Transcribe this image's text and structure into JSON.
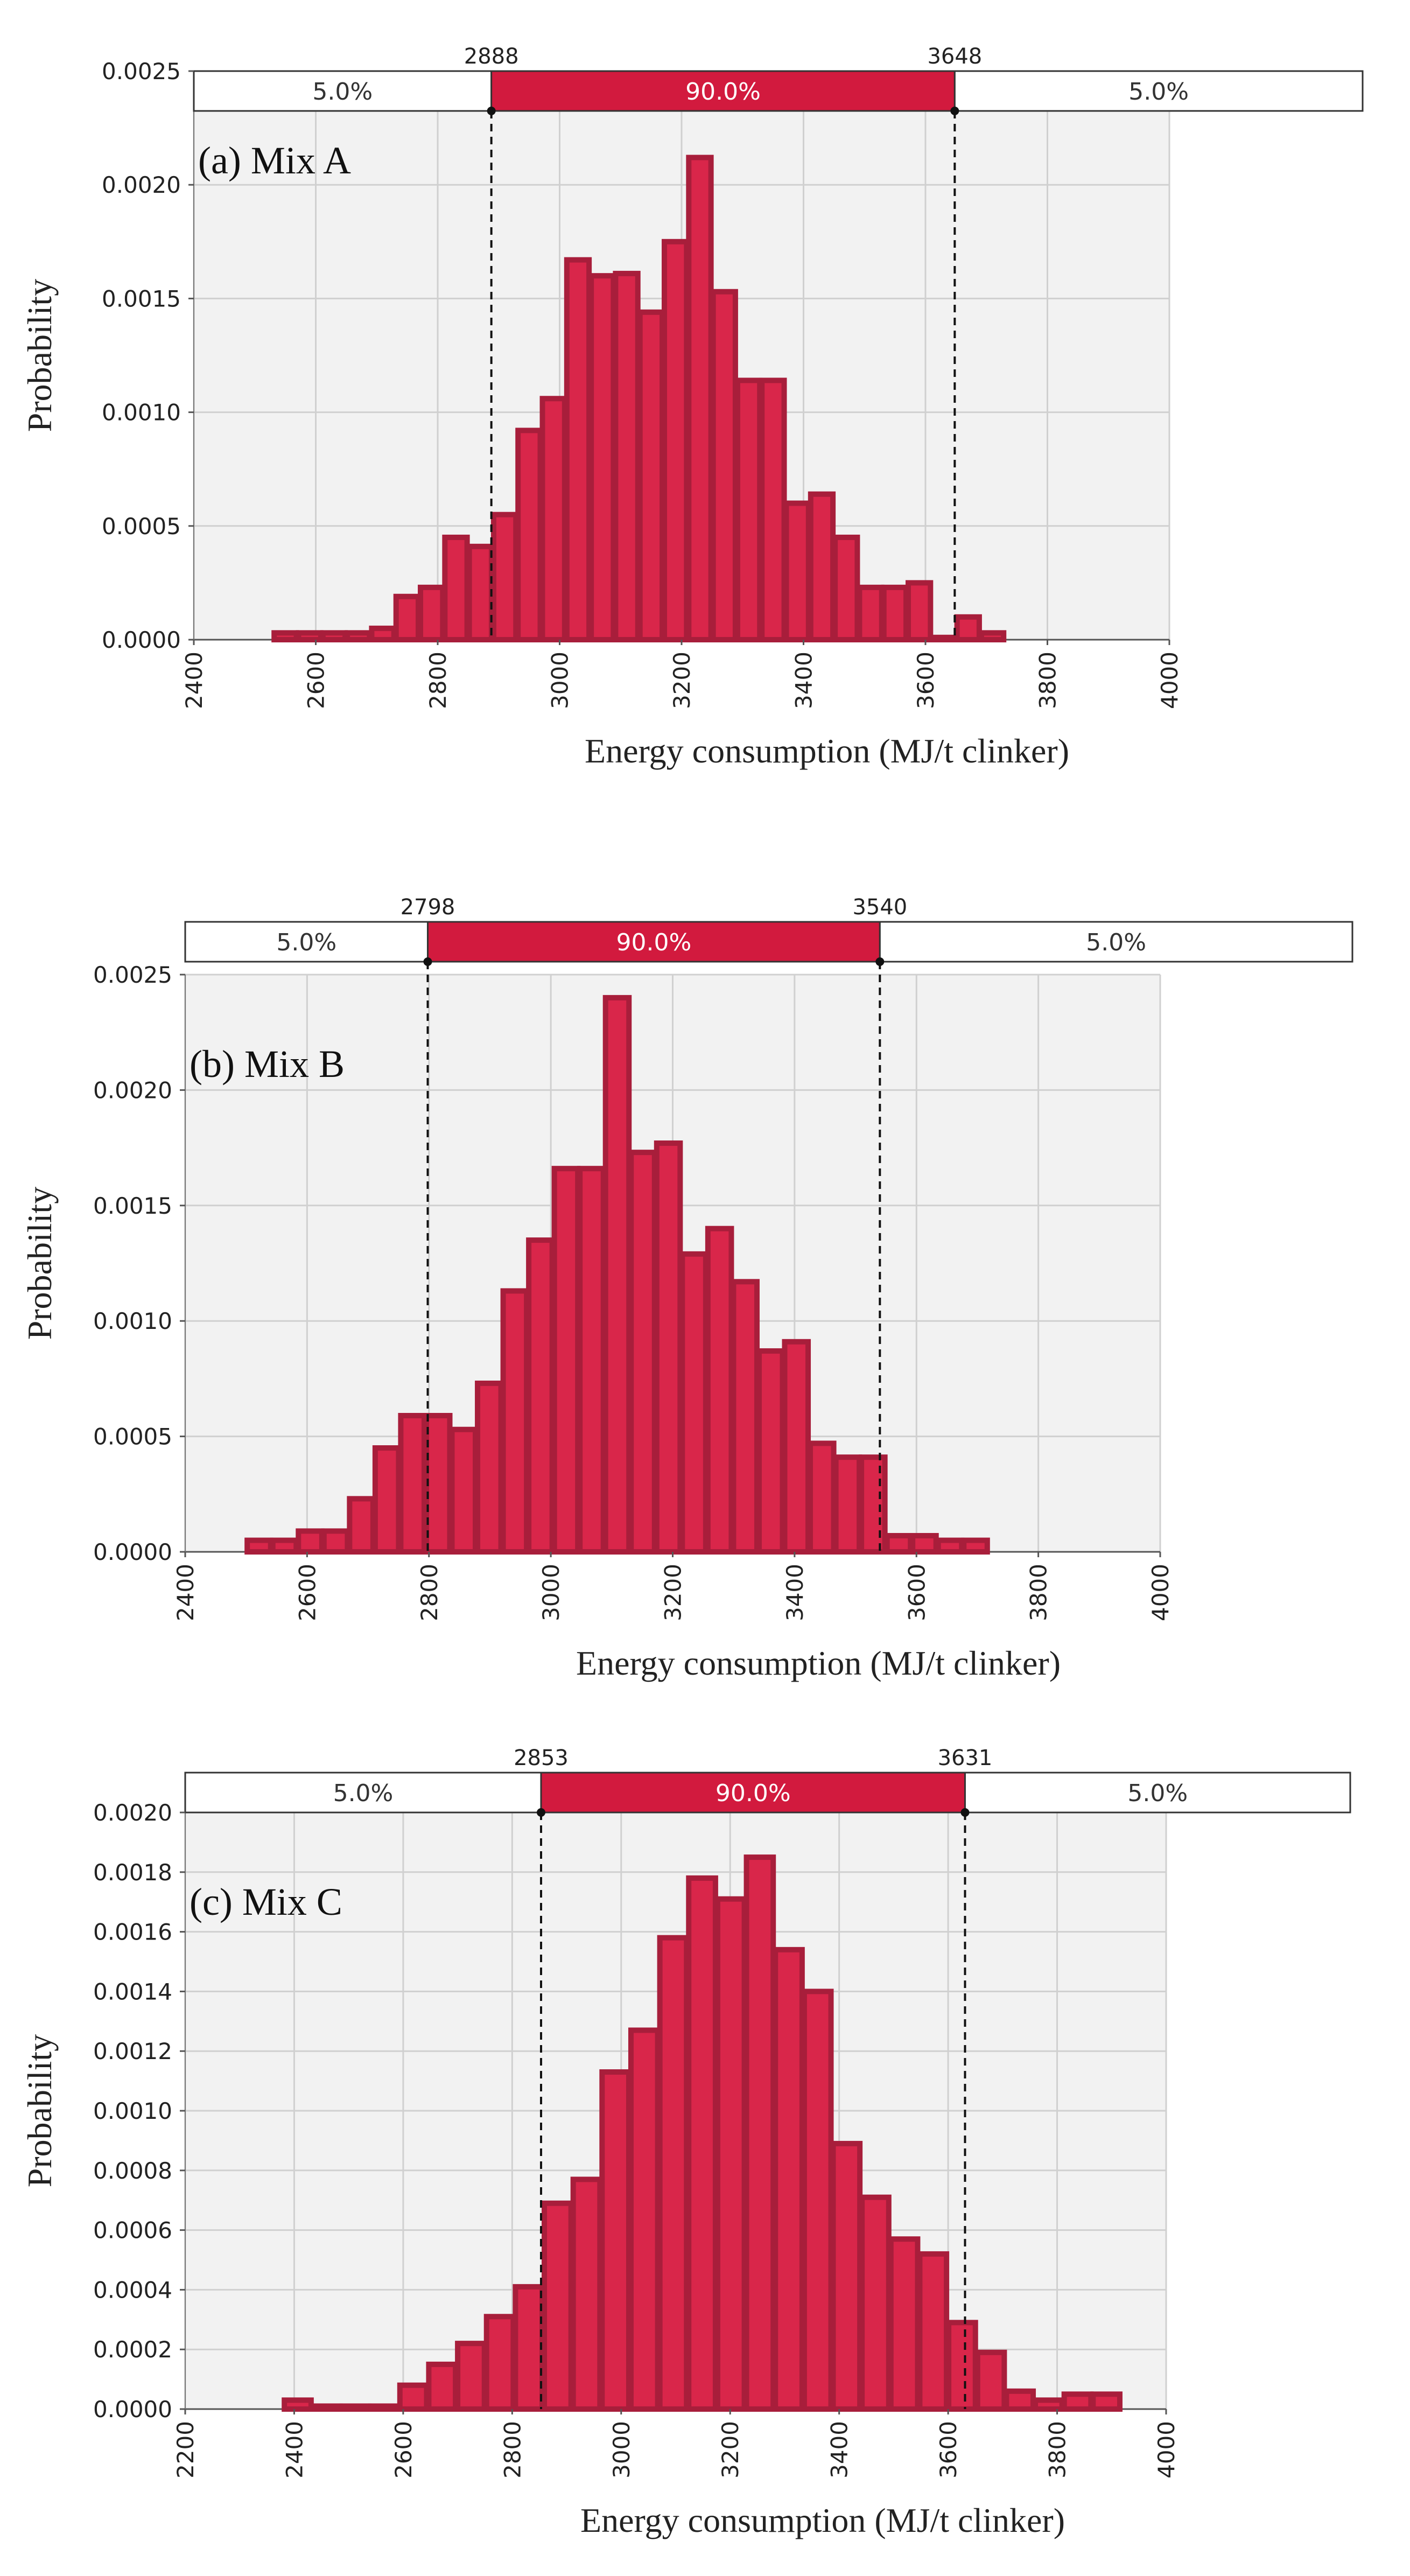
{
  "colors": {
    "bar_fill": "#d9264a",
    "bar_edge": "#a81e3b",
    "plot_bg": "#f2f2f2",
    "grid": "#d0d0d0",
    "band_mid": "#d21a3e",
    "band_side": "#ffffff",
    "text": "#222222"
  },
  "chart_data": [
    {
      "type": "bar",
      "subtype": "histogram",
      "panel_label": "(a) Mix A",
      "xlabel": "Energy consumption (MJ/t clinker)",
      "ylabel": "Probability",
      "xlim": [
        2400,
        4000
      ],
      "ylim": [
        0,
        0.0025
      ],
      "x_ticks": [
        "2400",
        "2600",
        "2800",
        "3000",
        "3200",
        "3400",
        "3600",
        "3800",
        "4000"
      ],
      "y_ticks": [
        "0.0000",
        "0.0005",
        "0.0010",
        "0.0015",
        "0.0020",
        "0.0025"
      ],
      "grid": true,
      "bin_width": 40,
      "bin_starts": [
        2530,
        2570,
        2610,
        2650,
        2690,
        2730,
        2770,
        2810,
        2850,
        2890,
        2930,
        2970,
        3010,
        3050,
        3090,
        3130,
        3170,
        3210,
        3250,
        3290,
        3330,
        3370,
        3410,
        3450,
        3490,
        3530,
        3570,
        3610,
        3650,
        3690,
        3730,
        3770,
        3810,
        3850,
        3890,
        3930
      ],
      "values": [
        3e-05,
        3e-05,
        3e-05,
        3e-05,
        5e-05,
        0.00019,
        0.00023,
        0.00045,
        0.00041,
        0.00055,
        0.00092,
        0.00106,
        0.00167,
        0.0016,
        0.00161,
        0.00144,
        0.00175,
        0.00212,
        0.00153,
        0.00114,
        0.00114,
        0.0006,
        0.00064,
        0.00045,
        0.00023,
        0.00023,
        0.00025,
        1e-05,
        0.0001,
        3e-05,
        0,
        0,
        0,
        0,
        0,
        0
      ],
      "percentile_band": {
        "lower": 2888,
        "upper": 3648,
        "lower_label": "2888",
        "upper_label": "3648",
        "left_pct": "5.0%",
        "mid_pct": "90.0%",
        "right_pct": "5.0%"
      }
    },
    {
      "type": "bar",
      "subtype": "histogram",
      "panel_label": "(b) Mix B",
      "xlabel": "Energy consumption (MJ/t clinker)",
      "ylabel": "Probability",
      "xlim": [
        2400,
        4000
      ],
      "ylim": [
        0,
        0.0025
      ],
      "x_ticks": [
        "2400",
        "2600",
        "2800",
        "3000",
        "3200",
        "3400",
        "3600",
        "3800",
        "4000"
      ],
      "y_ticks": [
        "0.0000",
        "0.0005",
        "0.0010",
        "0.0015",
        "0.0020",
        "0.0025"
      ],
      "grid": true,
      "bin_width": 42,
      "bin_starts": [
        2500,
        2542,
        2584,
        2626,
        2668,
        2710,
        2752,
        2794,
        2836,
        2878,
        2920,
        2962,
        3004,
        3046,
        3088,
        3130,
        3172,
        3214,
        3256,
        3298,
        3340,
        3382,
        3424,
        3466,
        3508,
        3550,
        3592,
        3634,
        3676,
        3718,
        3760,
        3802
      ],
      "values": [
        5e-05,
        5e-05,
        9e-05,
        9e-05,
        0.00023,
        0.00045,
        0.00059,
        0.00059,
        0.00053,
        0.00073,
        0.00113,
        0.00135,
        0.00166,
        0.00166,
        0.0024,
        0.00173,
        0.00177,
        0.00129,
        0.0014,
        0.00117,
        0.00087,
        0.00091,
        0.00047,
        0.00041,
        0.00041,
        7e-05,
        7e-05,
        5e-05,
        5e-05,
        0,
        0,
        0
      ],
      "percentile_band": {
        "lower": 2798,
        "upper": 3540,
        "lower_label": "2798",
        "upper_label": "3540",
        "left_pct": "5.0%",
        "mid_pct": "90.0%",
        "right_pct": "5.0%"
      }
    },
    {
      "type": "bar",
      "subtype": "histogram",
      "panel_label": "(c) Mix C",
      "xlabel": "Energy consumption (MJ/t clinker)",
      "ylabel": "Probability",
      "xlim": [
        2200,
        4000
      ],
      "ylim": [
        0,
        0.002
      ],
      "x_ticks": [
        "2200",
        "2400",
        "2600",
        "2800",
        "3000",
        "3200",
        "3400",
        "3600",
        "3800",
        "4000"
      ],
      "y_ticks": [
        "0.0000",
        "0.0002",
        "0.0004",
        "0.0006",
        "0.0008",
        "0.0010",
        "0.0012",
        "0.0014",
        "0.0016",
        "0.0018",
        "0.0020"
      ],
      "grid": true,
      "bin_width": 53,
      "bin_starts": [
        2380,
        2433,
        2486,
        2539,
        2592,
        2645,
        2698,
        2751,
        2804,
        2857,
        2910,
        2963,
        3016,
        3069,
        3122,
        3175,
        3228,
        3281,
        3334,
        3387,
        3440,
        3493,
        3546,
        3599,
        3652,
        3705,
        3758,
        3811,
        3864,
        3917
      ],
      "values": [
        3e-05,
        1e-05,
        1e-05,
        1e-05,
        8e-05,
        0.00015,
        0.00022,
        0.00031,
        0.00041,
        0.00069,
        0.00077,
        0.00113,
        0.00127,
        0.00158,
        0.00178,
        0.00171,
        0.00185,
        0.00154,
        0.0014,
        0.00089,
        0.00071,
        0.00057,
        0.00052,
        0.00029,
        0.00019,
        6e-05,
        3e-05,
        5e-05,
        5e-05,
        0
      ],
      "percentile_band": {
        "lower": 2853,
        "upper": 3631,
        "lower_label": "2853",
        "upper_label": "3631",
        "left_pct": "5.0%",
        "mid_pct": "90.0%",
        "right_pct": "5.0%"
      }
    }
  ]
}
